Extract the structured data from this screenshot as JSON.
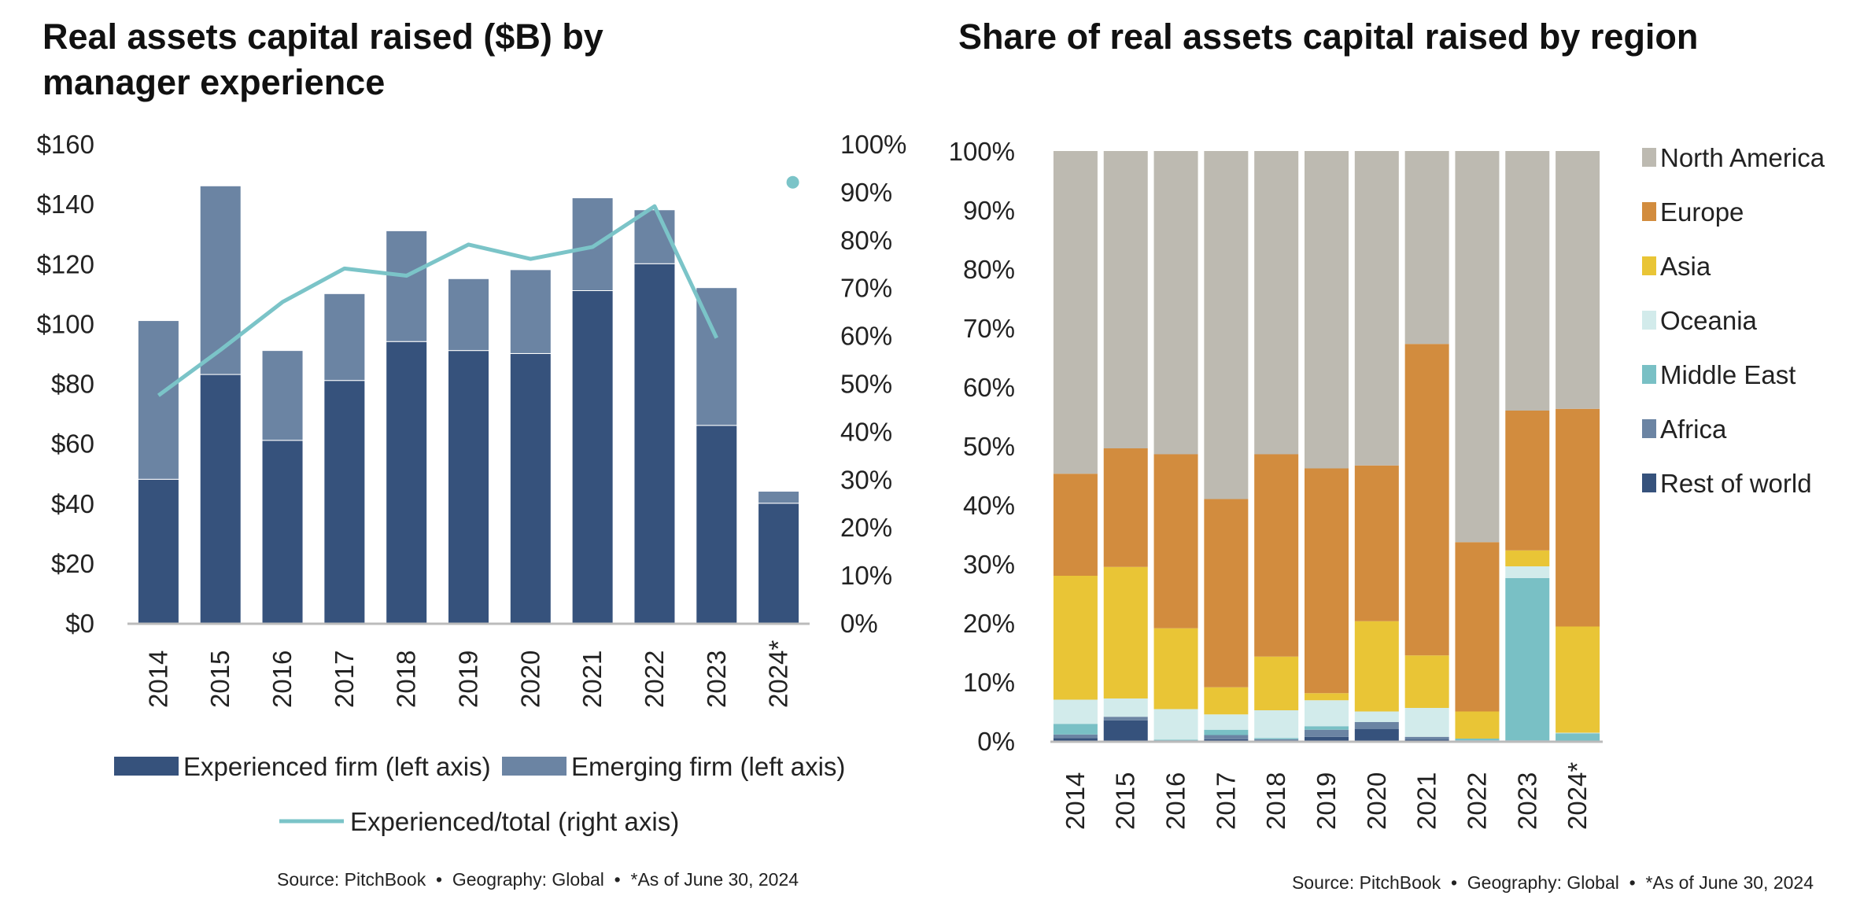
{
  "chart_data": [
    {
      "type": "bar",
      "title_lines": [
        "Real assets capital raised ($B) by",
        "manager experience"
      ],
      "categories": [
        "2014",
        "2015",
        "2016",
        "2017",
        "2018",
        "2019",
        "2020",
        "2021",
        "2022",
        "2023",
        "2024*"
      ],
      "stacked": true,
      "y_left": {
        "ylim": [
          0,
          160
        ],
        "ticks": [
          0,
          20,
          40,
          60,
          80,
          100,
          120,
          140,
          160
        ],
        "tick_labels": [
          "$0",
          "$20",
          "$40",
          "$60",
          "$80",
          "$100",
          "$120",
          "$140",
          "$160"
        ]
      },
      "y_right": {
        "ylim": [
          0,
          100
        ],
        "ticks": [
          0,
          10,
          20,
          30,
          40,
          50,
          60,
          70,
          80,
          90,
          100
        ],
        "tick_labels": [
          "0%",
          "10%",
          "20%",
          "30%",
          "40%",
          "50%",
          "60%",
          "70%",
          "80%",
          "90%",
          "100%"
        ]
      },
      "series": [
        {
          "name": "Experienced firm (left axis)",
          "kind": "bar",
          "axis": "left",
          "color": "#36527c",
          "values": [
            48,
            83,
            61,
            81,
            94,
            91,
            90,
            111,
            120,
            66,
            40
          ]
        },
        {
          "name": "Emerging firm (left axis)",
          "kind": "bar",
          "axis": "left",
          "color": "#6b84a3",
          "values": [
            53,
            63,
            30,
            29,
            37,
            24,
            28,
            31,
            18,
            46,
            4
          ]
        },
        {
          "name": "Experienced/total (right axis)",
          "kind": "line",
          "axis": "right",
          "color": "#7bc4c8",
          "values": [
            47.5,
            57,
            67,
            74,
            72.5,
            79,
            76,
            78.5,
            87,
            59.5,
            92
          ]
        }
      ],
      "source": "Source: PitchBook  •  Geography: Global  •  *As of June 30, 2024"
    },
    {
      "type": "bar",
      "title_lines": [
        "Share of real assets capital raised by region"
      ],
      "categories": [
        "2014",
        "2015",
        "2016",
        "2017",
        "2018",
        "2019",
        "2020",
        "2021",
        "2022",
        "2023",
        "2024*"
      ],
      "stacked": true,
      "ylim": [
        0,
        100
      ],
      "ticks": [
        0,
        10,
        20,
        30,
        40,
        50,
        60,
        70,
        80,
        90,
        100
      ],
      "tick_labels": [
        "0%",
        "10%",
        "20%",
        "30%",
        "40%",
        "50%",
        "60%",
        "70%",
        "80%",
        "90%",
        "100%"
      ],
      "legend_position": "right",
      "series": [
        {
          "name": "Rest of world",
          "color": "#36527c",
          "values": [
            0.5,
            3.5,
            0.1,
            0.3,
            0,
            0.7,
            2,
            0.2,
            0,
            0,
            0
          ]
        },
        {
          "name": "Africa",
          "color": "#6b84a3",
          "values": [
            0.6,
            0.6,
            0,
            0.7,
            0.3,
            1.2,
            1.2,
            0.5,
            0.1,
            0.1,
            0
          ]
        },
        {
          "name": "Middle East",
          "color": "#79c0c5",
          "values": [
            1.8,
            0,
            0.1,
            0.9,
            0.2,
            0.6,
            0,
            0,
            0.3,
            27.5,
            1.3
          ]
        },
        {
          "name": "Oceania",
          "color": "#d2ebeb",
          "values": [
            4.1,
            3.1,
            5.2,
            2.6,
            4.7,
            4.4,
            1.8,
            4.9,
            0,
            2,
            0.1
          ]
        },
        {
          "name": "Asia",
          "color": "#e9c536",
          "values": [
            21,
            22.3,
            13.7,
            4.6,
            9.1,
            1.2,
            15.3,
            8.9,
            4.6,
            2.7,
            18
          ]
        },
        {
          "name": "Europe",
          "color": "#d28c3e",
          "values": [
            17.3,
            20.1,
            29.5,
            31.9,
            34.3,
            38.1,
            26.4,
            52.8,
            28.7,
            23.7,
            36.9
          ]
        },
        {
          "name": "North America",
          "color": "#bdbab1",
          "values": [
            54.7,
            50.4,
            51.4,
            59,
            51.4,
            53.8,
            53.3,
            32.7,
            66.3,
            44,
            43.7
          ]
        }
      ],
      "legend_order": [
        "North America",
        "Europe",
        "Asia",
        "Oceania",
        "Middle East",
        "Africa",
        "Rest of world"
      ],
      "source": "Source: PitchBook  •  Geography: Global  •  *As of June 30, 2024"
    }
  ]
}
